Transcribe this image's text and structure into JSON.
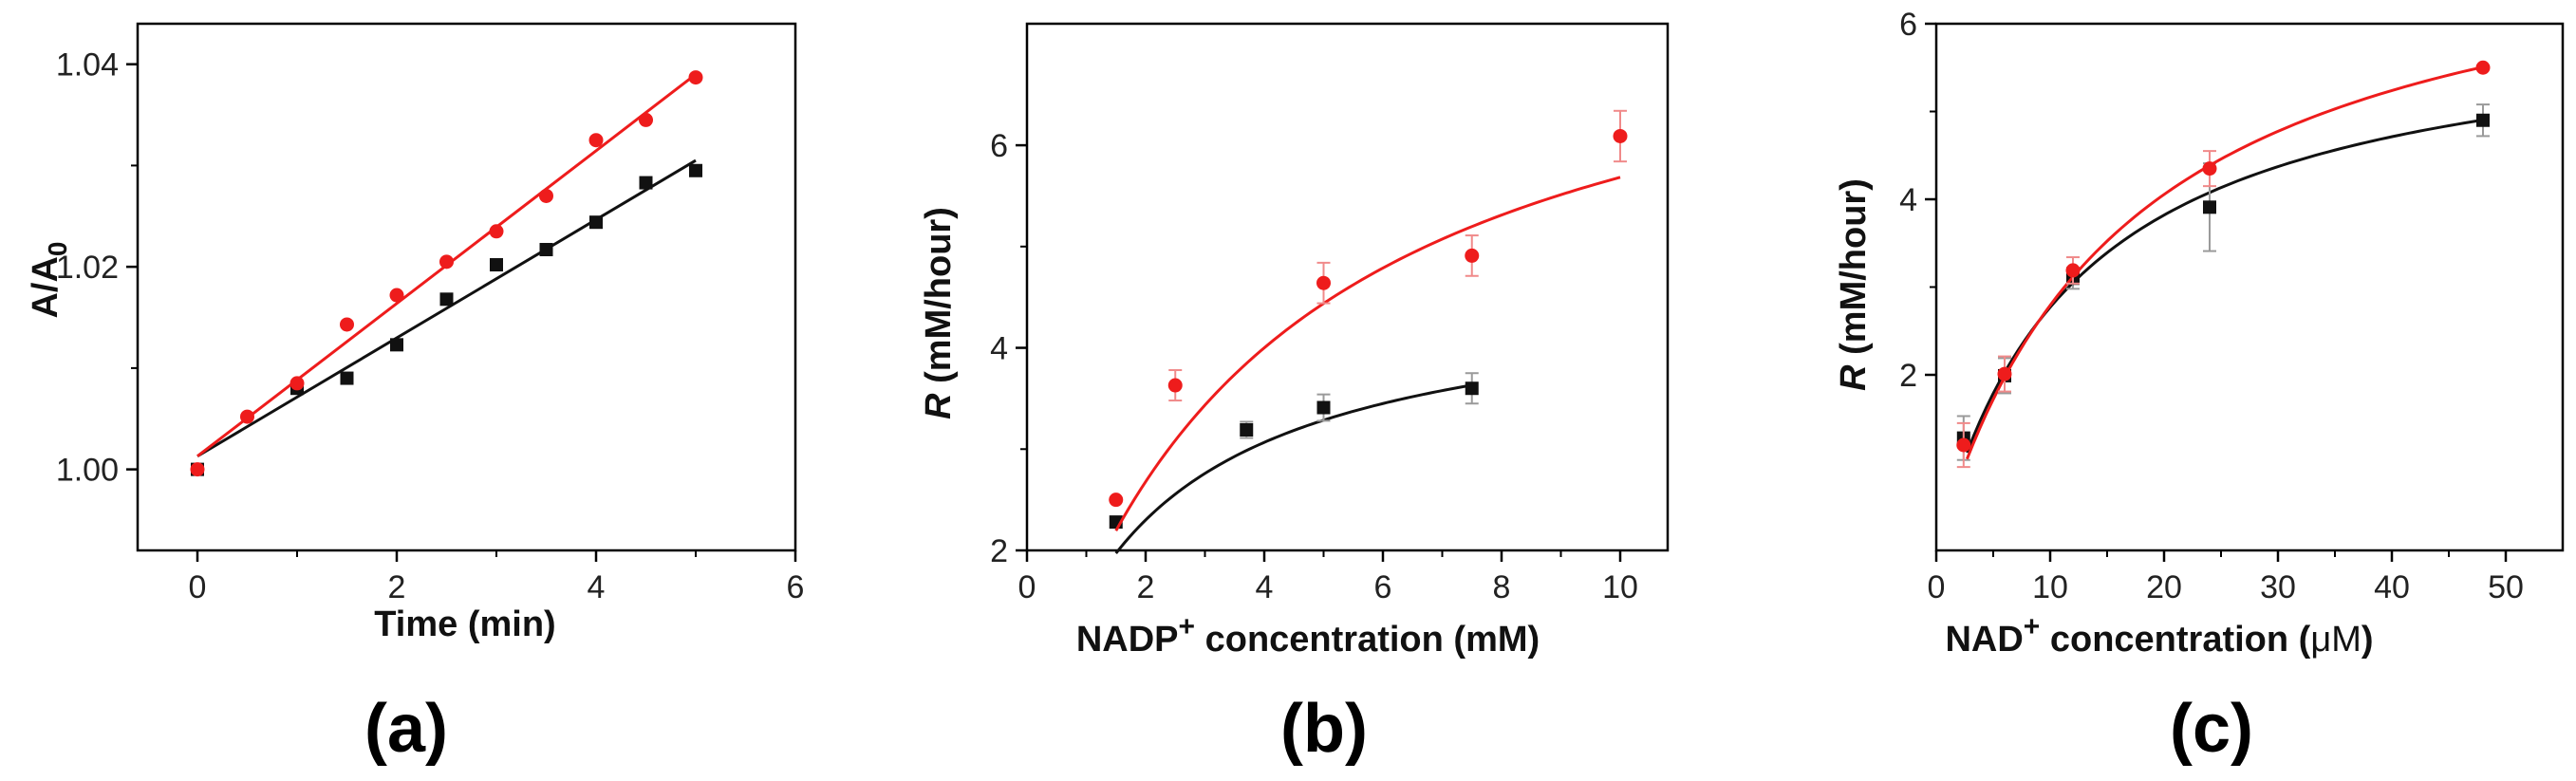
{
  "figure": {
    "panel_labels": [
      "(a)",
      "(b)",
      "(c)"
    ]
  },
  "colors": {
    "red": "#ee1c1c",
    "black": "#111111",
    "errorbar": "#9a9a9a"
  },
  "chart_data": [
    {
      "id": "a",
      "type": "scatter",
      "title": "",
      "xlabel": "Time (min)",
      "ylabel_main": "A/A",
      "ylabel_sub": "0",
      "xlim": [
        -0.6,
        6
      ],
      "ylim": [
        0.992,
        1.044
      ],
      "xticks": [
        0,
        2,
        4,
        6
      ],
      "xtick_labels": [
        "0",
        "2",
        "4",
        "6"
      ],
      "yticks": [
        1.0,
        1.02,
        1.04
      ],
      "ytick_labels": [
        "1.00",
        "1.02",
        "1.04"
      ],
      "series": [
        {
          "name": "black",
          "color": "#111111",
          "marker": "square",
          "x": [
            0,
            1,
            1.5,
            2,
            2.5,
            3,
            3.5,
            4,
            4.5,
            5
          ],
          "y": [
            1.0,
            1.008,
            1.009,
            1.0123,
            1.0168,
            1.0202,
            1.0217,
            1.0244,
            1.0283,
            1.0295
          ],
          "fit": {
            "kind": "linear",
            "x0": 0,
            "x1": 5,
            "y0": 1.0013,
            "y1": 1.0305
          }
        },
        {
          "name": "red",
          "color": "#ee1c1c",
          "marker": "circle",
          "x": [
            0,
            0.5,
            1,
            1.5,
            2,
            2.5,
            3,
            3.5,
            4,
            4.5,
            5
          ],
          "y": [
            1.0,
            1.0052,
            1.0085,
            1.0143,
            1.0172,
            1.0205,
            1.0235,
            1.027,
            1.0325,
            1.0345,
            1.0387
          ],
          "fit": {
            "kind": "linear",
            "x0": 0,
            "x1": 5,
            "y0": 1.0013,
            "y1": 1.039
          }
        }
      ]
    },
    {
      "id": "b",
      "type": "scatter",
      "title": "",
      "xlabel_pre": "NADP",
      "xlabel_sup": "+",
      "xlabel_post": " concentration (mM)",
      "ylabel_italic": "R",
      "ylabel_rest": " (mM/hour)",
      "xlim": [
        0,
        10.8
      ],
      "ylim": [
        2,
        7.2
      ],
      "xticks": [
        0,
        2,
        4,
        6,
        8,
        10
      ],
      "xtick_labels": [
        "0",
        "2",
        "4",
        "6",
        "8",
        "10"
      ],
      "yticks": [
        2,
        4,
        6
      ],
      "ytick_labels": [
        "2",
        "4",
        "6"
      ],
      "series": [
        {
          "name": "black",
          "color": "#111111",
          "marker": "square",
          "x": [
            1.5,
            3.7,
            5,
            7.5
          ],
          "y": [
            2.28,
            3.19,
            3.41,
            3.6
          ],
          "err": [
            0.0,
            0.08,
            0.13,
            0.15
          ],
          "fit": {
            "kind": "mm",
            "vmax": 4.6,
            "km": 2.0,
            "x0": 1.5,
            "x1": 7.5
          }
        },
        {
          "name": "red",
          "color": "#ee1c1c",
          "marker": "circle",
          "x": [
            1.5,
            2.5,
            5,
            7.5,
            10
          ],
          "y": [
            2.5,
            3.63,
            4.64,
            4.91,
            6.09
          ],
          "err": [
            0.0,
            0.15,
            0.2,
            0.2,
            0.25
          ],
          "fit": {
            "kind": "mm",
            "vmax": 7.9,
            "km": 3.9,
            "x0": 1.5,
            "x1": 10
          }
        }
      ]
    },
    {
      "id": "c",
      "type": "scatter",
      "title": "",
      "xlabel_pre": "NAD",
      "xlabel_sup": "+",
      "xlabel_post": " concentration (",
      "xlabel_unit": "μM",
      "xlabel_close": ")",
      "ylabel_italic": "R",
      "ylabel_rest": " (mM/hour)",
      "xlim": [
        0,
        55
      ],
      "ylim": [
        0,
        6
      ],
      "xticks": [
        0,
        10,
        20,
        30,
        40,
        50
      ],
      "xtick_labels": [
        "0",
        "10",
        "20",
        "30",
        "40",
        "50"
      ],
      "yticks": [
        2,
        4,
        6
      ],
      "ytick_labels": [
        "2",
        "4",
        "6"
      ],
      "series": [
        {
          "name": "black",
          "color": "#111111",
          "marker": "square",
          "x": [
            2.4,
            6,
            12,
            24,
            48
          ],
          "y": [
            1.28,
            1.99,
            3.1,
            3.91,
            4.9
          ],
          "err": [
            0.25,
            0.2,
            0.12,
            0.5,
            0.18
          ],
          "fit": {
            "kind": "mm",
            "vmax": 6.15,
            "km": 12.2,
            "x0": 2.7,
            "x1": 48
          }
        },
        {
          "name": "red",
          "color": "#ee1c1c",
          "marker": "circle",
          "x": [
            2.4,
            6,
            12,
            24,
            48
          ],
          "y": [
            1.2,
            2.01,
            3.19,
            4.35,
            5.5
          ],
          "err": [
            0.25,
            0.2,
            0.15,
            0.2,
            0.0
          ],
          "fit": {
            "kind": "mm",
            "vmax": 7.4,
            "km": 16.5,
            "x0": 2.7,
            "x1": 48
          }
        }
      ]
    }
  ]
}
